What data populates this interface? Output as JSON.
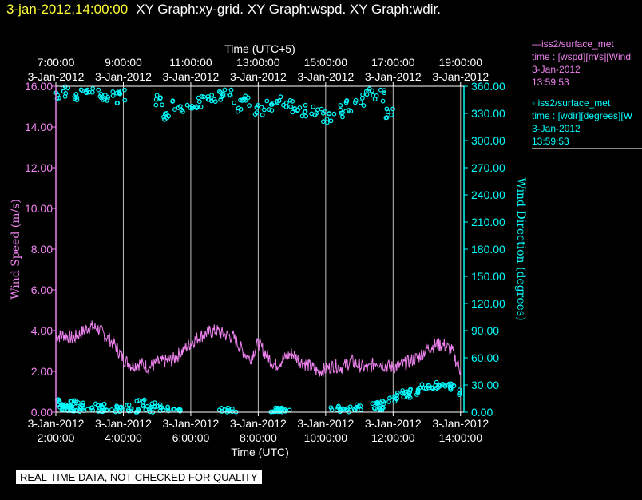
{
  "header": {
    "date_time": "3-jan-2012,14:00:00",
    "graphs_text": "XY Graph:xy-grid.  XY Graph:wspd.  XY Graph:wdir."
  },
  "colors": {
    "speed": "#ee82ee",
    "direction": "#00ffff",
    "date_title": "#ffff33",
    "grid": "#ffffff"
  },
  "legend": [
    {
      "line1": "—iss2/surface_met",
      "line2": "time : [wspd][m/s][Wind",
      "line3": "3-Jan-2012",
      "line4": "13:59:53",
      "color": "#ee82ee"
    },
    {
      "line1": "◦ iss2/surface_met",
      "line2": "time : [wdir][degrees][W",
      "line3": "3-Jan-2012",
      "line4": "13:59:53",
      "color": "#00ffff"
    }
  ],
  "quality_note": "REAL-TIME DATA, NOT CHECKED FOR QUALITY",
  "chart_data": {
    "type": "line",
    "x_axis_bottom": {
      "label": "Time (UTC)",
      "range": [
        2,
        14.1
      ],
      "ticks": [
        {
          "value": 2,
          "date": "3-Jan-2012",
          "time": "2:00:00"
        },
        {
          "value": 4,
          "date": "3-Jan-2012",
          "time": "4:00:00"
        },
        {
          "value": 6,
          "date": "3-Jan-2012",
          "time": "6:00:00"
        },
        {
          "value": 8,
          "date": "3-Jan-2012",
          "time": "8:00:00"
        },
        {
          "value": 10,
          "date": "3-Jan-2012",
          "time": "10:00:00"
        },
        {
          "value": 12,
          "date": "3-Jan-2012",
          "time": "12:00:00"
        },
        {
          "value": 14,
          "date": "3-Jan-2012",
          "time": "14:00:00"
        }
      ]
    },
    "x_axis_top": {
      "label": "Time (UTC+5)",
      "ticks": [
        {
          "value": 2,
          "time": "7:00:00",
          "date": "3-Jan-2012"
        },
        {
          "value": 4,
          "time": "9:00:00",
          "date": "3-Jan-2012"
        },
        {
          "value": 6,
          "time": "11:00:00",
          "date": "3-Jan-2012"
        },
        {
          "value": 8,
          "time": "13:00:00",
          "date": "3-Jan-2012"
        },
        {
          "value": 10,
          "time": "15:00:00",
          "date": "3-Jan-2012"
        },
        {
          "value": 12,
          "time": "17:00:00",
          "date": "3-Jan-2012"
        },
        {
          "value": 14,
          "time": "19:00:00",
          "date": "3-Jan-2012"
        }
      ]
    },
    "y_axis_left": {
      "label": "Wind Speed (m/s)",
      "range": [
        0,
        16
      ],
      "ticks": [
        "0.00",
        "2.00",
        "4.00",
        "6.00",
        "8.00",
        "10.00",
        "12.00",
        "14.00",
        "16.00"
      ]
    },
    "y_axis_right": {
      "label": "Wind Direction (degrees)",
      "range": [
        0,
        360
      ],
      "ticks": [
        "0.00",
        "30.00",
        "60.00",
        "90.00",
        "120.00",
        "150.00",
        "180.00",
        "210.00",
        "240.00",
        "270.00",
        "300.00",
        "330.00",
        "360.00"
      ]
    },
    "grid": "vertical lines at major x ticks",
    "series": [
      {
        "name": "iss2/surface_met wspd",
        "axis": "left",
        "style": "line",
        "x": [
          2.0,
          2.25,
          2.5,
          2.75,
          3.0,
          3.25,
          3.5,
          3.75,
          4.0,
          4.25,
          4.5,
          4.75,
          5.0,
          5.25,
          5.5,
          5.75,
          6.0,
          6.25,
          6.5,
          6.75,
          7.0,
          7.25,
          7.5,
          7.75,
          8.0,
          8.25,
          8.5,
          8.75,
          9.0,
          9.25,
          9.5,
          9.75,
          10.0,
          10.25,
          10.5,
          10.75,
          11.0,
          11.25,
          11.5,
          11.75,
          12.0,
          12.25,
          12.5,
          12.75,
          13.0,
          13.25,
          13.5,
          13.75,
          14.0
        ],
        "values": [
          3.7,
          3.8,
          3.6,
          3.9,
          4.2,
          4.1,
          3.7,
          3.3,
          2.6,
          2.3,
          2.4,
          2.2,
          2.4,
          2.5,
          2.6,
          3.0,
          3.4,
          3.7,
          3.9,
          4.0,
          3.8,
          3.7,
          3.1,
          2.6,
          3.4,
          2.8,
          2.3,
          2.6,
          2.9,
          2.5,
          2.3,
          2.0,
          2.1,
          2.3,
          2.2,
          2.5,
          2.3,
          2.1,
          2.5,
          2.3,
          2.2,
          2.3,
          2.5,
          2.7,
          3.1,
          3.3,
          3.3,
          3.0,
          2.0
        ]
      },
      {
        "name": "iss2/surface_met wdir",
        "axis": "right",
        "style": "scatter",
        "x": [
          2.0,
          2.1,
          2.2,
          2.3,
          2.4,
          2.5,
          2.6,
          2.7,
          2.8,
          3.2,
          3.3,
          3.4,
          3.8,
          3.9,
          4.1,
          4.3,
          4.5,
          4.7,
          4.9,
          5.0,
          5.2,
          5.6,
          7.0,
          7.2,
          8.5,
          8.6,
          8.7,
          8.8,
          10.3,
          10.5,
          10.8,
          10.9,
          11.5,
          11.6,
          11.7,
          12.0,
          12.2,
          12.4,
          12.6,
          12.8,
          13.0,
          13.2,
          13.4,
          13.6,
          13.8,
          14.0
        ],
        "values": [
          12,
          8,
          5,
          10,
          6,
          4,
          9,
          3,
          7,
          4,
          6,
          2,
          3,
          2,
          5,
          3,
          10,
          6,
          4,
          8,
          2,
          1,
          1,
          2,
          3,
          1,
          2,
          1,
          3,
          1,
          2,
          5,
          8,
          12,
          6,
          15,
          18,
          20,
          22,
          25,
          28,
          30,
          26,
          32,
          28,
          22
        ],
        "upper_cluster": {
          "x": [
            2.0,
            2.3,
            2.6,
            2.9,
            3.2,
            3.5,
            3.8,
            4.0,
            5.0,
            5.3,
            5.6,
            5.9,
            6.2,
            6.5,
            6.8,
            7.1,
            7.4,
            7.7,
            8.0,
            8.3,
            8.6,
            8.9,
            9.2,
            9.5,
            9.8,
            10.1,
            10.4,
            10.7,
            11.0,
            11.3,
            11.6,
            11.9
          ],
          "values": [
            352,
            354,
            350,
            356,
            352,
            350,
            348,
            350,
            346,
            330,
            340,
            338,
            342,
            345,
            350,
            352,
            338,
            345,
            335,
            340,
            343,
            338,
            330,
            333,
            328,
            326,
            332,
            338,
            345,
            352,
            350,
            332
          ]
        }
      }
    ]
  }
}
